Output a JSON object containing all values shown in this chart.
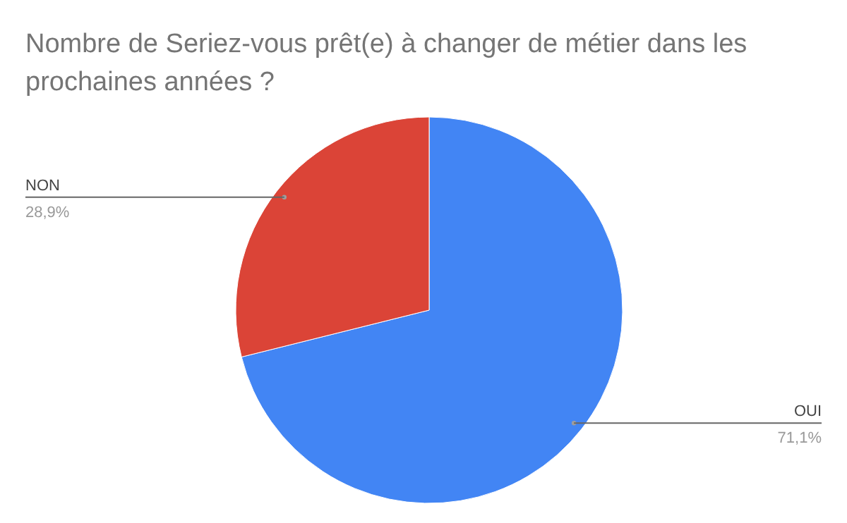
{
  "chart_data": {
    "type": "pie",
    "title": "Nombre de Seriez-vous prêt(e) à changer de métier dans les prochaines années ?",
    "categories": [
      "OUI",
      "NON"
    ],
    "values": [
      71.1,
      28.9
    ],
    "value_labels": [
      "71,1%",
      "28,9%"
    ],
    "colors": [
      "#4285f4",
      "#db4437"
    ],
    "legend": false
  }
}
